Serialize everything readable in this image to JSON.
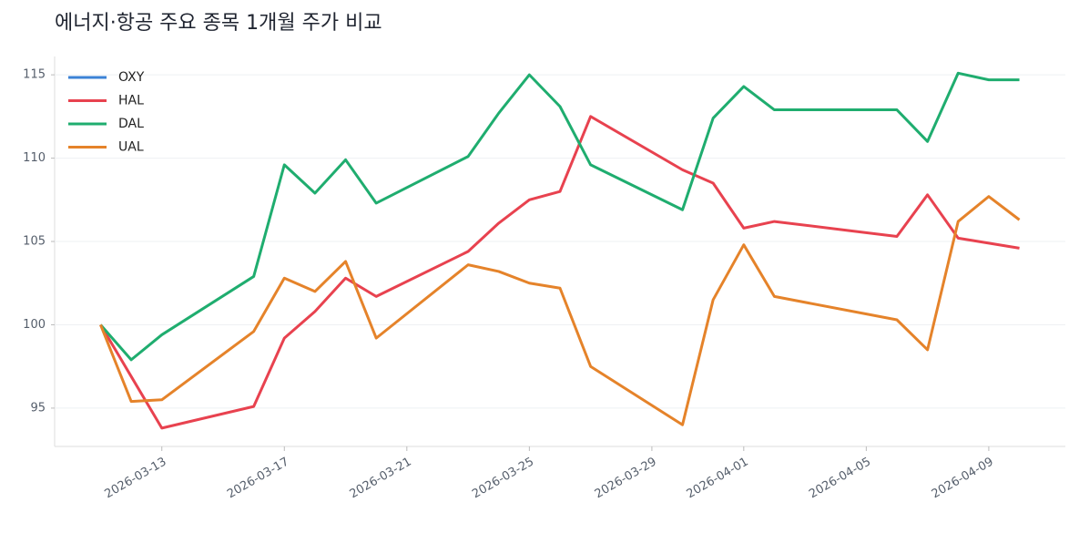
{
  "chart_data": {
    "type": "line",
    "title": "에너지·항공 주요 종목 1개월 주가 비교",
    "x": [
      "2026-03-11",
      "2026-03-12",
      "2026-03-13",
      "2026-03-16",
      "2026-03-17",
      "2026-03-18",
      "2026-03-19",
      "2026-03-20",
      "2026-03-23",
      "2026-03-24",
      "2026-03-25",
      "2026-03-26",
      "2026-03-27",
      "2026-03-30",
      "2026-03-31",
      "2026-04-01",
      "2026-04-02",
      "2026-04-06",
      "2026-04-07",
      "2026-04-08",
      "2026-04-09",
      "2026-04-10"
    ],
    "series": [
      {
        "name": "OXY",
        "color": "#3b82d6",
        "values": [
          null,
          null,
          null,
          null,
          null,
          null,
          null,
          null,
          null,
          null,
          null,
          null,
          null,
          null,
          null,
          null,
          null,
          null,
          null,
          null,
          null,
          null
        ]
      },
      {
        "name": "HAL",
        "color": "#e8424f",
        "values": [
          100,
          96.9,
          93.8,
          95.1,
          99.2,
          100.8,
          102.8,
          101.7,
          104.4,
          106.1,
          107.5,
          108.0,
          112.5,
          109.3,
          108.5,
          105.8,
          106.2,
          105.3,
          107.8,
          105.2,
          104.9,
          104.6
        ]
      },
      {
        "name": "DAL",
        "color": "#1fad6f",
        "values": [
          100,
          97.9,
          99.4,
          102.9,
          109.6,
          107.9,
          109.9,
          107.3,
          110.1,
          112.7,
          115.0,
          113.1,
          109.6,
          106.9,
          112.4,
          114.3,
          112.9,
          112.9,
          111.0,
          115.1,
          114.7,
          114.7
        ]
      },
      {
        "name": "UAL",
        "color": "#e5832a",
        "values": [
          100,
          95.4,
          95.5,
          99.6,
          102.8,
          102.0,
          103.8,
          99.2,
          103.6,
          103.2,
          102.5,
          102.2,
          97.5,
          94.0,
          101.5,
          104.8,
          101.7,
          100.3,
          98.5,
          106.2,
          107.7,
          106.3
        ]
      }
    ],
    "xlim": [
      "2026-03-09T12:00",
      "2026-04-11T12:00"
    ],
    "xticks": [
      "2026-03-13",
      "2026-03-17",
      "2026-03-21",
      "2026-03-25",
      "2026-03-29",
      "2026-04-01",
      "2026-04-05",
      "2026-04-09"
    ],
    "ylim": [
      92.7,
      116.1
    ],
    "yticks": [
      95,
      100,
      105,
      110,
      115
    ],
    "grid": true,
    "legend": "upper-left"
  }
}
